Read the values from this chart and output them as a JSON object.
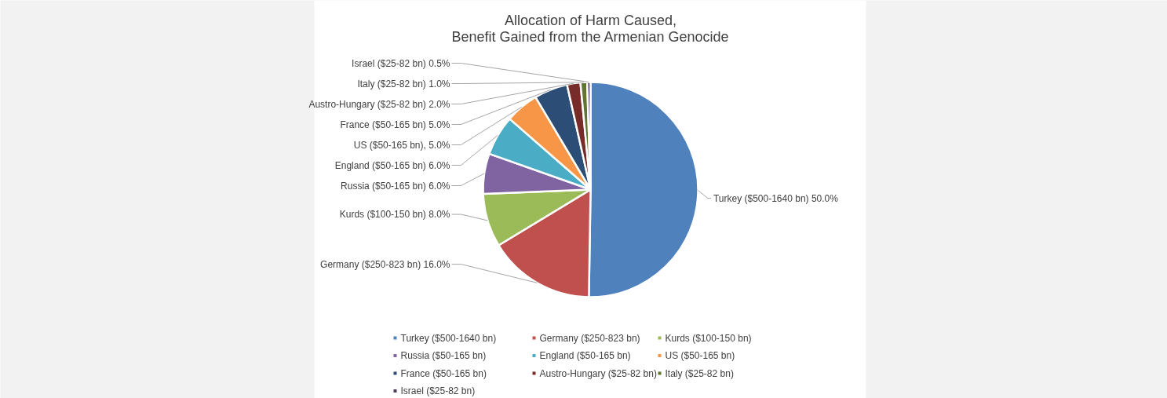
{
  "chart_data": {
    "type": "pie",
    "title": "Allocation of Harm Caused,\nBenefit Gained from the Armenian Genocide",
    "categories": [
      "Turkey ($500-1640 bn)",
      "Germany ($250-823 bn)",
      "Kurds ($100-150 bn)",
      "Russia ($50-165 bn)",
      "England ($50-165 bn)",
      "US ($50-165 bn)",
      "France ($50-165 bn)",
      "Austro-Hungary ($25-82 bn)",
      "Italy ($25-82 bn)",
      "Israel ($25-82 bn)"
    ],
    "values": [
      50,
      16,
      8,
      6,
      6,
      5,
      5,
      2,
      1,
      0.5
    ],
    "colors": [
      "#4f81bd",
      "#c0504d",
      "#9bbb59",
      "#8064a2",
      "#4bacc6",
      "#f79646",
      "#2c4d75",
      "#772c2a",
      "#5f7530",
      "#4d3b62"
    ],
    "value_labels": [
      "Turkey ($500-1640 bn) 50.0%",
      "Germany ($250-823 bn) 16.0%",
      "Kurds ($100-150 bn) 8.0%",
      "Russia ($50-165 bn) 6.0%",
      "England ($50-165 bn) 6.0%",
      "US ($50-165 bn), 5.0%",
      "France ($50-165 bn) 5.0%",
      "Austro-Hungary ($25-82 bn) 2.0%",
      "Italy ($25-82 bn) 1.0%",
      "Israel ($25-82 bn) 0.5%"
    ],
    "legend": "bottom"
  }
}
